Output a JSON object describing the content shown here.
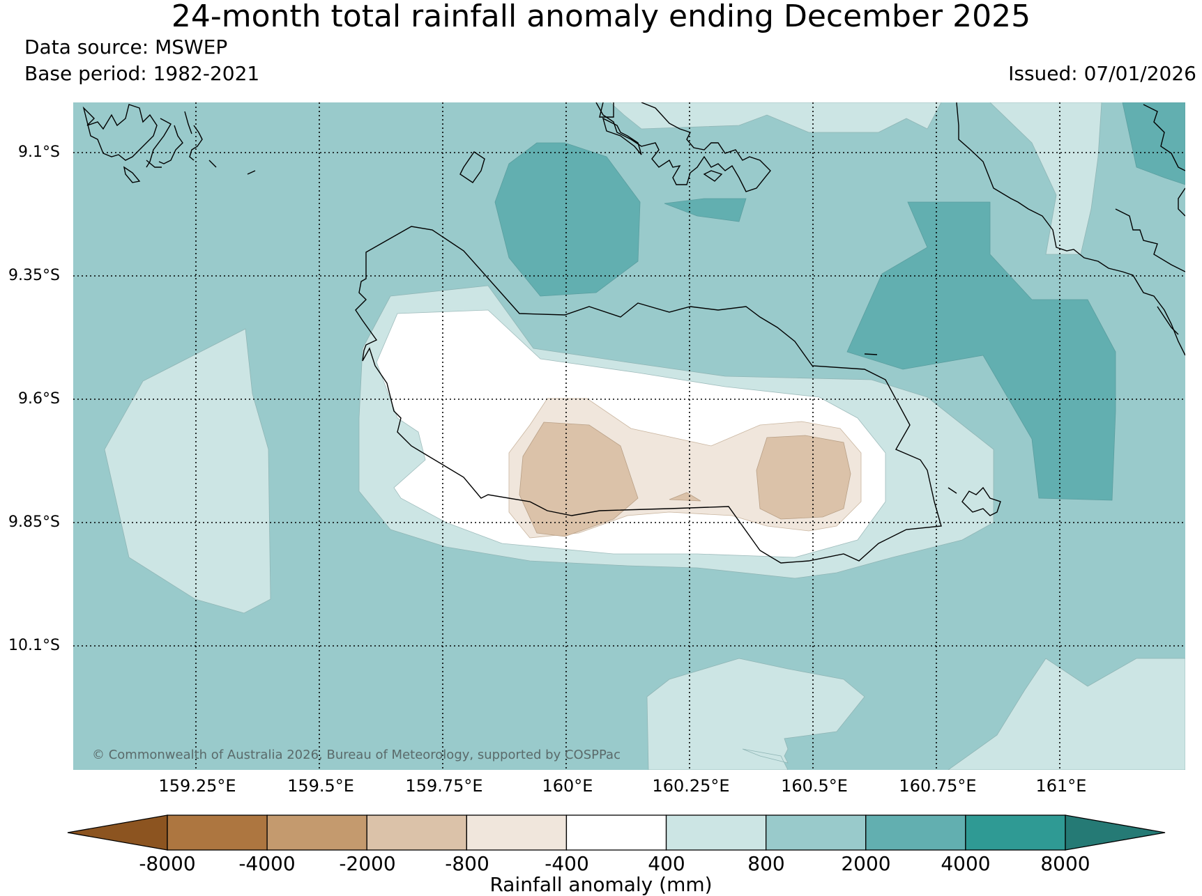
{
  "title": "24-month total rainfall anomaly ending December 2025",
  "data_source": "Data source: MSWEP",
  "base_period": "Base period: 1982-2021",
  "issued": "Issued: 07/01/2026",
  "copyright": "© Commonwealth of Australia 2026, Bureau of Meteorology, supported by COSPPac",
  "lat_labels": [
    "9.1°S",
    "9.35°S",
    "9.6°S",
    "9.85°S",
    "10.1°S"
  ],
  "lon_labels": [
    "159.25°E",
    "159.5°E",
    "159.75°E",
    "160°E",
    "160.25°E",
    "160.5°E",
    "160.75°E",
    "161°E"
  ],
  "colorbar": {
    "title": "Rainfall anomaly (mm)",
    "ticks": [
      "-8000",
      "-4000",
      "-2000",
      "-800",
      "-400",
      "400",
      "800",
      "2000",
      "4000",
      "8000"
    ],
    "colors": [
      "#8c5420",
      "#ad7640",
      "#c49a6e",
      "#dbc2a9",
      "#f0e6dc",
      "#ffffff",
      "#cce5e4",
      "#99cacb",
      "#62afb0",
      "#2f9a94",
      "#257a75"
    ]
  },
  "chart_data": {
    "type": "contour-map",
    "variable": "24-month total rainfall anomaly",
    "units": "mm",
    "lat_range": [
      "9.0°S",
      "10.35°S"
    ],
    "lon_range": [
      "159.0°E",
      "161.25°E"
    ],
    "levels": [
      -8000,
      -4000,
      -2000,
      -800,
      -400,
      400,
      800,
      2000,
      4000,
      8000
    ],
    "regions": [
      {
        "name": "background",
        "class": "800 to 2000"
      },
      {
        "name": "west-light-patch",
        "class": "400 to 800"
      },
      {
        "name": "central-white-band",
        "class": "-400 to 400"
      },
      {
        "name": "central-dry-core",
        "class": "-2000 to -800"
      },
      {
        "name": "north-wet-patch",
        "class": "2000 to 4000"
      },
      {
        "name": "east-wet-patch",
        "class": "2000 to 4000"
      },
      {
        "name": "south-light-patch",
        "class": "400 to 800"
      }
    ]
  }
}
